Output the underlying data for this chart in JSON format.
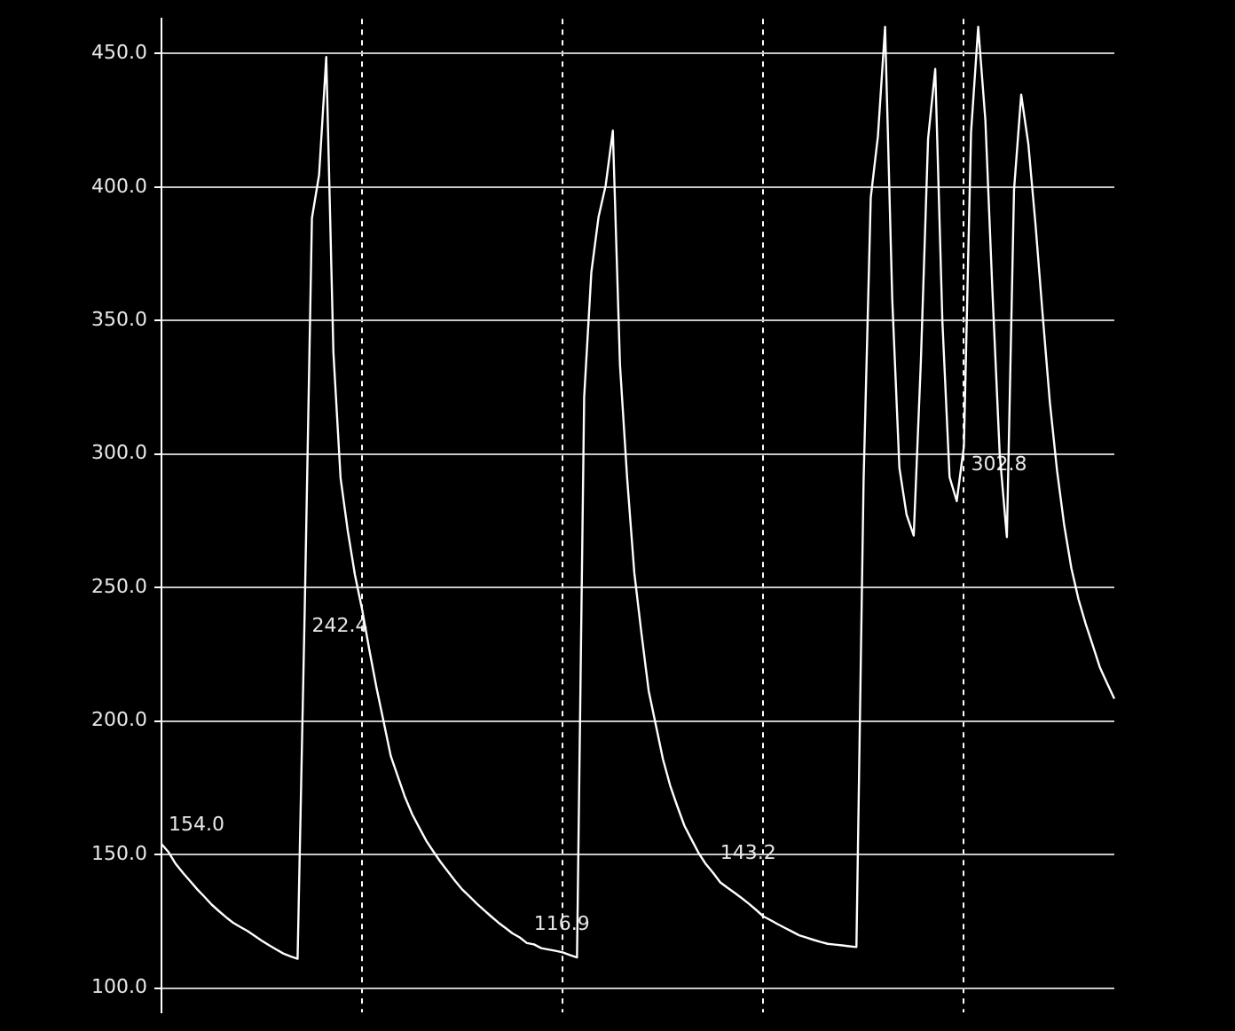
{
  "chart_data": {
    "type": "line",
    "categories": [
      null,
      null,
      null,
      null,
      null,
      null,
      null,
      null,
      null,
      null,
      null,
      null,
      null,
      null,
      null,
      null,
      null,
      null,
      null,
      null,
      null,
      null,
      null,
      null,
      null,
      null,
      null,
      null,
      null,
      null,
      null,
      null,
      null,
      null,
      null,
      null,
      null,
      null,
      null,
      null,
      null,
      null,
      null,
      null,
      null,
      null,
      null,
      null,
      null,
      null,
      null,
      null,
      null,
      null,
      null,
      null,
      null,
      null,
      null,
      null,
      null,
      null,
      null,
      null,
      null,
      null,
      null,
      null,
      null,
      null,
      null,
      null,
      null,
      null,
      null,
      null,
      null,
      null,
      null,
      null,
      null,
      null,
      null,
      null,
      null,
      null,
      null,
      null,
      null,
      null,
      null,
      null,
      null,
      null,
      null,
      null,
      null,
      null,
      null,
      null,
      null,
      null,
      null,
      null,
      null,
      null,
      null,
      null,
      null,
      null,
      null,
      null,
      null,
      null,
      null,
      null,
      null,
      null,
      null,
      null,
      null,
      null,
      null,
      null,
      null,
      null,
      null,
      null,
      null,
      null,
      null,
      null,
      null,
      null
    ],
    "series": [
      {
        "color": "#ffffff",
        "values": [
          154.0,
          150.9,
          146.5,
          143.2,
          140.1,
          137.0,
          134.2,
          131.3,
          128.9,
          126.6,
          124.5,
          122.9,
          121.4,
          119.6,
          117.8,
          116.1,
          114.5,
          113.0,
          111.9,
          111.0,
          242.4,
          388.3,
          404.6,
          448.7,
          338,
          291,
          271.3,
          254.8,
          241.9,
          226.9,
          212.7,
          199.9,
          187.0,
          179.2,
          171.5,
          165.1,
          160.0,
          155.0,
          151.0,
          147.1,
          143.6,
          140.1,
          136.9,
          134.3,
          131.7,
          129.3,
          126.9,
          124.6,
          122.6,
          120.5,
          119.0,
          116.9,
          116.4,
          115.0,
          114.5,
          114.0,
          113.4,
          112.4,
          111.5,
          321.4,
          368,
          388.7,
          400.6,
          421.1,
          333.3,
          290.9,
          255.5,
          232.8,
          211.4,
          198.6,
          185.7,
          175.9,
          168.1,
          160.8,
          155.6,
          150.5,
          146.4,
          143.2,
          139.6,
          137.6,
          135.7,
          133.7,
          131.6,
          129.3,
          126.9,
          125.5,
          124.0,
          122.6,
          121.2,
          119.8,
          119.0,
          118.1,
          117.3,
          116.6,
          116.3,
          116.0,
          115.7,
          115.4,
          290,
          396,
          419,
          460,
          358,
          294.8,
          277.3,
          269.5,
          335,
          418,
          444.2,
          349.6,
          291.4,
          282.4,
          302.8,
          420.5,
          460,
          425,
          360,
          300,
          268.9,
          399,
          434.6,
          416,
          385.9,
          352,
          319.4,
          293.9,
          273.4,
          257.3,
          245.6,
          236.4,
          228.3,
          220.0,
          214.1,
          208.4
        ],
        "value_labels": [
          "154.0",
          null,
          null,
          null,
          null,
          null,
          null,
          null,
          null,
          null,
          null,
          null,
          null,
          null,
          null,
          null,
          null,
          null,
          null,
          null,
          "242.4",
          null,
          null,
          null,
          null,
          null,
          null,
          null,
          null,
          null,
          null,
          null,
          null,
          null,
          null,
          null,
          null,
          null,
          null,
          null,
          null,
          null,
          null,
          null,
          null,
          null,
          null,
          null,
          null,
          null,
          null,
          "116.9",
          null,
          null,
          null,
          null,
          null,
          null,
          null,
          null,
          null,
          null,
          null,
          null,
          null,
          null,
          null,
          null,
          null,
          null,
          null,
          null,
          null,
          null,
          null,
          null,
          null,
          "143.2",
          null,
          null,
          null,
          null,
          null,
          null,
          null,
          null,
          null,
          null,
          null,
          null,
          null,
          null,
          null,
          null,
          null,
          null,
          null,
          null,
          null,
          null,
          null,
          null,
          null,
          null,
          null,
          null,
          null,
          null,
          null,
          null,
          null,
          null,
          "302.8",
          null,
          null,
          null,
          null,
          null,
          null,
          null,
          null,
          null,
          null,
          null,
          null,
          null,
          null,
          null,
          null,
          null,
          null,
          null,
          null,
          null
        ]
      }
    ],
    "ylim": [
      91,
      463
    ],
    "yticks": [
      {
        "value": 100,
        "label": "100.0"
      },
      {
        "value": 150,
        "label": "150.0"
      },
      {
        "value": 200,
        "label": "200.0"
      },
      {
        "value": 250,
        "label": "250.0"
      },
      {
        "value": 300,
        "label": "300.0"
      },
      {
        "value": 350,
        "label": "350.0"
      },
      {
        "value": 400,
        "label": "400.0"
      },
      {
        "value": 450,
        "label": "450.0"
      }
    ],
    "tick_labels": "y",
    "grid": true,
    "legend": false,
    "marker": "none",
    "line_style": "solid"
  }
}
